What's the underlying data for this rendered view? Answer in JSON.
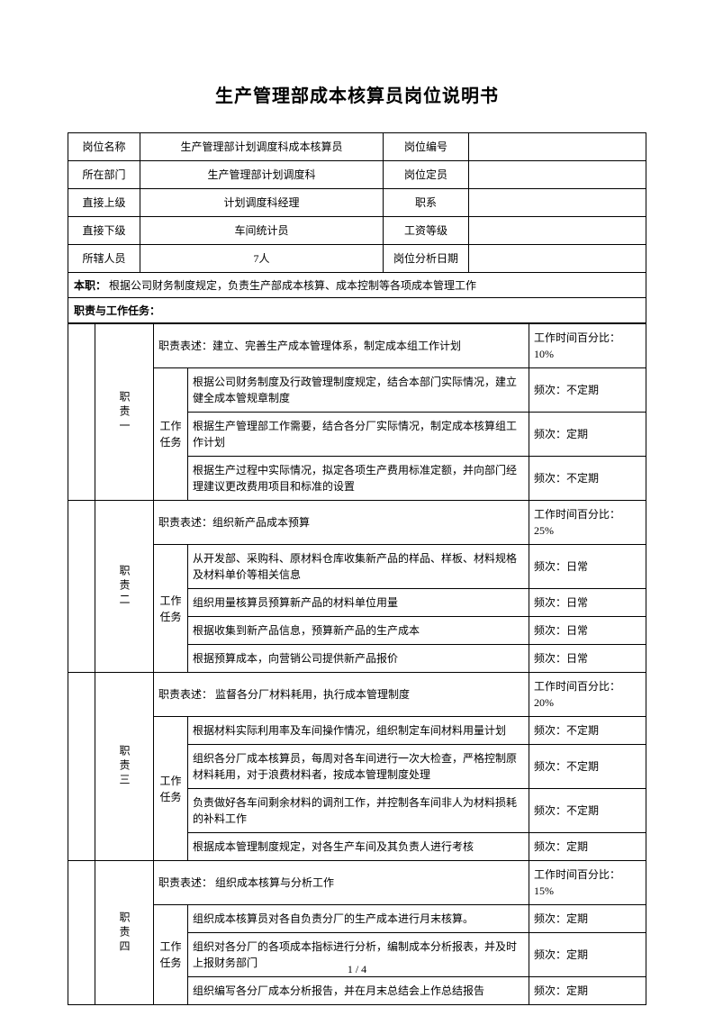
{
  "title": "生产管理部成本核算员岗位说明书",
  "info": {
    "rows": [
      {
        "l1": "岗位名称",
        "v1": "生产管理部计划调度科成本核算员",
        "l2": "岗位编号",
        "v2": ""
      },
      {
        "l1": "所在部门",
        "v1": "生产管理部计划调度科",
        "l2": "岗位定员",
        "v2": ""
      },
      {
        "l1": "直接上级",
        "v1": "计划调度科经理",
        "l2": "职系",
        "v2": ""
      },
      {
        "l1": "直接下级",
        "v1": "车间统计员",
        "l2": "工资等级",
        "v2": ""
      },
      {
        "l1": "所辖人员",
        "v1": "7人",
        "l2": "岗位分析日期",
        "v2": ""
      }
    ]
  },
  "mainRoleLabel": "本职：",
  "mainRoleText": "根据公司财务制度规定，负责生产部成本核算、成本控制等各项成本管理工作",
  "sectionDutiesTitle": "职责与工作任务：",
  "taskLabel": "工作任务",
  "freqPrefix": "频次：",
  "timePctPrefix": "工作时间百分比：",
  "duties": [
    {
      "name": "职责一",
      "desc": "职责表述：建立、完善生产成本管理体系，制定成本组工作计划",
      "pct": "10%",
      "tasks": [
        {
          "t": "根据公司财务制度及行政管理制度规定，结合本部门实际情况，建立健全成本管规章制度",
          "f": "不定期"
        },
        {
          "t": "根据生产管理部工作需要，结合各分厂实际情况，制定成本核算组工作计划",
          "f": "定期"
        },
        {
          "t": "根据生产过程中实际情况，拟定各项生产费用标准定额，并向部门经理建议更改费用项目和标准的设置",
          "f": "不定期"
        }
      ]
    },
    {
      "name": "职责二",
      "desc": "职责表述：组织新产品成本预算",
      "pct": "25%",
      "tasks": [
        {
          "t": "从开发部、采购科、原材料仓库收集新产品的样品、样板、材料规格及材料单价等相关信息",
          "f": "日常"
        },
        {
          "t": "组织用量核算员预算新产品的材料单位用量",
          "f": "日常"
        },
        {
          "t": "根据收集到新产品信息，预算新产品的生产成本",
          "f": "日常"
        },
        {
          "t": "根据预算成本，向营销公司提供新产品报价",
          "f": "日常"
        }
      ]
    },
    {
      "name": "职责三",
      "desc": "职责表述：  监督各分厂材料耗用，执行成本管理制度",
      "pct": "20%",
      "tasks": [
        {
          "t": "根据材料实际利用率及车间操作情况，组织制定车间材料用量计划",
          "f": "不定期"
        },
        {
          "t": "组织各分厂成本核算员，每周对各车间进行一次大检查，严格控制原材料耗用，对于浪费材料者，按成本管理制度处理",
          "f": "不定期"
        },
        {
          "t": "负责做好各车间剩余材料的调剂工作，并控制各车间非人为材料损耗的补料工作",
          "f": "不定期"
        },
        {
          "t": "根据成本管理制度规定，对各生产车间及其负责人进行考核",
          "f": "定期"
        }
      ]
    },
    {
      "name": "职责四",
      "desc": "职责表述：  组织成本核算与分析工作",
      "pct": "15%",
      "tasks": [
        {
          "t": "组织成本核算员对各自负责分厂的生产成本进行月末核算。",
          "f": "定期"
        },
        {
          "t": "组织对各分厂的各项成本指标进行分析，编制成本分析报表，并及时上报财务部门",
          "f": "定期"
        },
        {
          "t": "组织编写各分厂成本分析报告，并在月末总结会上作总结报告",
          "f": "定期"
        }
      ]
    }
  ],
  "pageNum": "1 / 4"
}
